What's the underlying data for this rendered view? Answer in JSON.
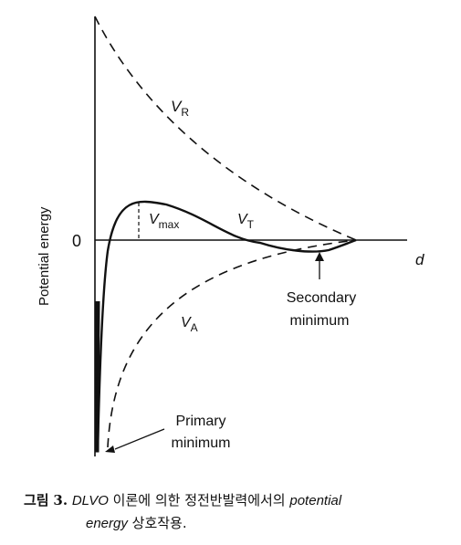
{
  "figure": {
    "y_axis_label": "Potential energy",
    "x_axis_label": "d",
    "origin_label": "0",
    "curve_labels": {
      "repulsive": {
        "main": "V",
        "sub": "R"
      },
      "attractive": {
        "main": "V",
        "sub": "A"
      },
      "total": {
        "main": "V",
        "sub": "T"
      },
      "barrier": {
        "main": "V",
        "sub": "max"
      }
    },
    "annotations": {
      "secondary_line1": "Secondary",
      "secondary_line2": "minimum",
      "primary_line1": "Primary",
      "primary_line2": "minimum"
    }
  },
  "caption": {
    "prefix": "그림",
    "number": "3.",
    "theory": "DLVO",
    "korean1": "이론에 의한 정전반발력에서의",
    "italic1": "potential",
    "italic2": "energy",
    "korean2": "상호작용."
  }
}
